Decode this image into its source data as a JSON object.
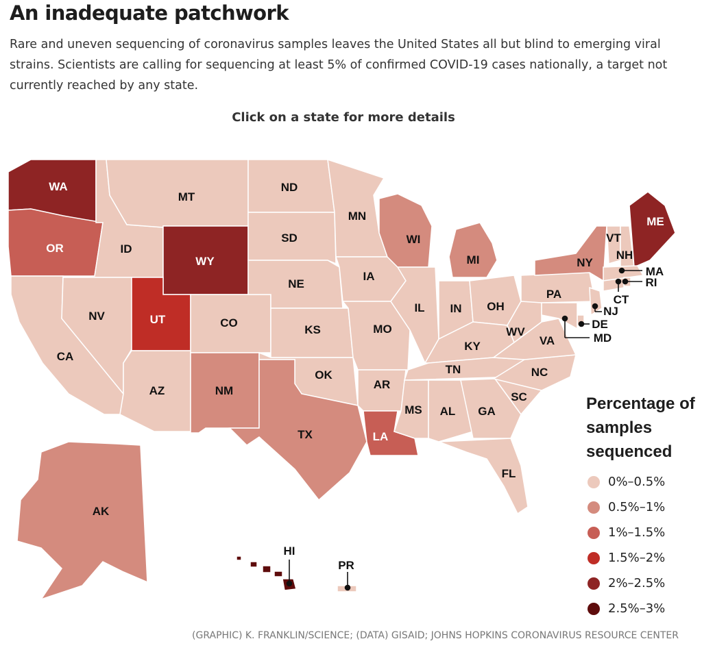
{
  "title": "An inadequate patchwork",
  "subtitle": "Rare and uneven sequencing of coronavirus samples leaves the United States all but blind to emerging viral strains. Scientists are calling for sequencing at least 5% of confirmed COVID-19 cases nationally, a target not currently reached by any state.",
  "instruction": "Click on a state for more details",
  "legend": {
    "title": "Percentage of samples sequenced",
    "items": [
      {
        "label": "0%–0.5%",
        "color": "#ecc9bc"
      },
      {
        "label": "0.5%–1%",
        "color": "#d48b7e"
      },
      {
        "label": "1%–1.5%",
        "color": "#c75e55"
      },
      {
        "label": "1.5%–2%",
        "color": "#bf2d26"
      },
      {
        "label": "2%–2.5%",
        "color": "#8e2424"
      },
      {
        "label": "2.5%–3%",
        "color": "#5e0c0c"
      }
    ]
  },
  "states": [
    {
      "code": "WA",
      "bin": 4
    },
    {
      "code": "OR",
      "bin": 2
    },
    {
      "code": "CA",
      "bin": 0
    },
    {
      "code": "ID",
      "bin": 0
    },
    {
      "code": "NV",
      "bin": 0
    },
    {
      "code": "MT",
      "bin": 0
    },
    {
      "code": "WY",
      "bin": 4
    },
    {
      "code": "UT",
      "bin": 3
    },
    {
      "code": "AZ",
      "bin": 0
    },
    {
      "code": "CO",
      "bin": 0
    },
    {
      "code": "NM",
      "bin": 1
    },
    {
      "code": "ND",
      "bin": 0
    },
    {
      "code": "SD",
      "bin": 0
    },
    {
      "code": "NE",
      "bin": 0
    },
    {
      "code": "KS",
      "bin": 0
    },
    {
      "code": "OK",
      "bin": 0
    },
    {
      "code": "TX",
      "bin": 1
    },
    {
      "code": "MN",
      "bin": 0
    },
    {
      "code": "IA",
      "bin": 0
    },
    {
      "code": "MO",
      "bin": 0
    },
    {
      "code": "AR",
      "bin": 0
    },
    {
      "code": "LA",
      "bin": 2
    },
    {
      "code": "WI",
      "bin": 1
    },
    {
      "code": "IL",
      "bin": 0
    },
    {
      "code": "MI",
      "bin": 1
    },
    {
      "code": "IN",
      "bin": 0
    },
    {
      "code": "OH",
      "bin": 0
    },
    {
      "code": "KY",
      "bin": 0
    },
    {
      "code": "TN",
      "bin": 0
    },
    {
      "code": "MS",
      "bin": 0
    },
    {
      "code": "AL",
      "bin": 0
    },
    {
      "code": "GA",
      "bin": 0
    },
    {
      "code": "FL",
      "bin": 0
    },
    {
      "code": "SC",
      "bin": 0
    },
    {
      "code": "NC",
      "bin": 0
    },
    {
      "code": "VA",
      "bin": 0
    },
    {
      "code": "WV",
      "bin": 0
    },
    {
      "code": "PA",
      "bin": 0
    },
    {
      "code": "NY",
      "bin": 1
    },
    {
      "code": "VT",
      "bin": 0
    },
    {
      "code": "NH",
      "bin": 0
    },
    {
      "code": "ME",
      "bin": 4
    },
    {
      "code": "MA",
      "bin": 0
    },
    {
      "code": "RI",
      "bin": 0
    },
    {
      "code": "CT",
      "bin": 0
    },
    {
      "code": "NJ",
      "bin": 0
    },
    {
      "code": "DE",
      "bin": 0
    },
    {
      "code": "MD",
      "bin": 0
    },
    {
      "code": "AK",
      "bin": 1
    },
    {
      "code": "HI",
      "bin": 5
    },
    {
      "code": "PR",
      "bin": 0
    }
  ],
  "credit": "(GRAPHIC) K. FRANKLIN/SCIENCE; (DATA) GISAID; JOHNS HOPKINS CORONAVIRUS RESOURCE CENTER"
}
